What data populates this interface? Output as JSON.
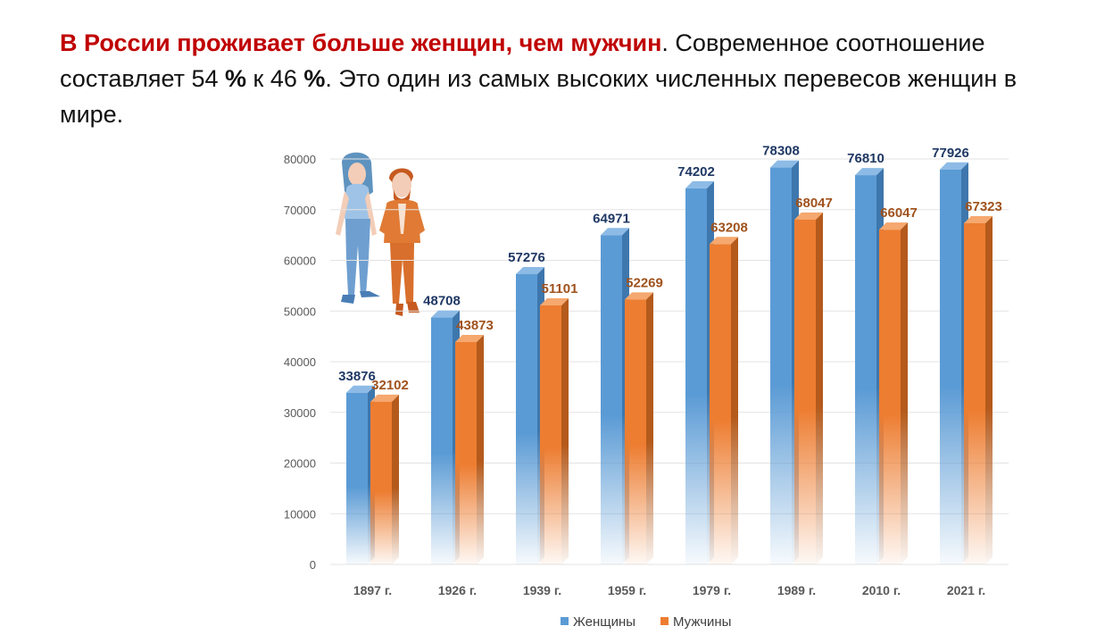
{
  "headline": {
    "accent": "В России проживает больше женщин, чем мужчин",
    "part1": ". Современное соотношение составляет 54 ",
    "pct": "%",
    "part2": " к 46 ",
    "pct2": "%",
    "part3": ". Это один из самых высоких численных перевесов женщин в мире."
  },
  "colors": {
    "women": "#5b9bd5",
    "women_side": "#3e77ad",
    "women_label": "#1f3864",
    "men": "#ed7d31",
    "men_side": "#b45a1c",
    "men_label": "#a0521d"
  },
  "chart_data": {
    "type": "bar",
    "categories": [
      "1897 г.",
      "1926 г.",
      "1939 г.",
      "1959 г.",
      "1979 г.",
      "1989 г.",
      "2010 г.",
      "2021 г."
    ],
    "series": [
      {
        "name": "Женщины",
        "values": [
          33876,
          48708,
          57276,
          64971,
          74202,
          78308,
          76810,
          77926
        ]
      },
      {
        "name": "Мужчины",
        "values": [
          32102,
          43873,
          51101,
          52269,
          63208,
          68047,
          66047,
          67323
        ]
      }
    ],
    "ylim": [
      0,
      80000
    ],
    "yticks": [
      0,
      10000,
      20000,
      30000,
      40000,
      50000,
      60000,
      70000,
      80000
    ],
    "grid": true,
    "legend": "bottom"
  }
}
